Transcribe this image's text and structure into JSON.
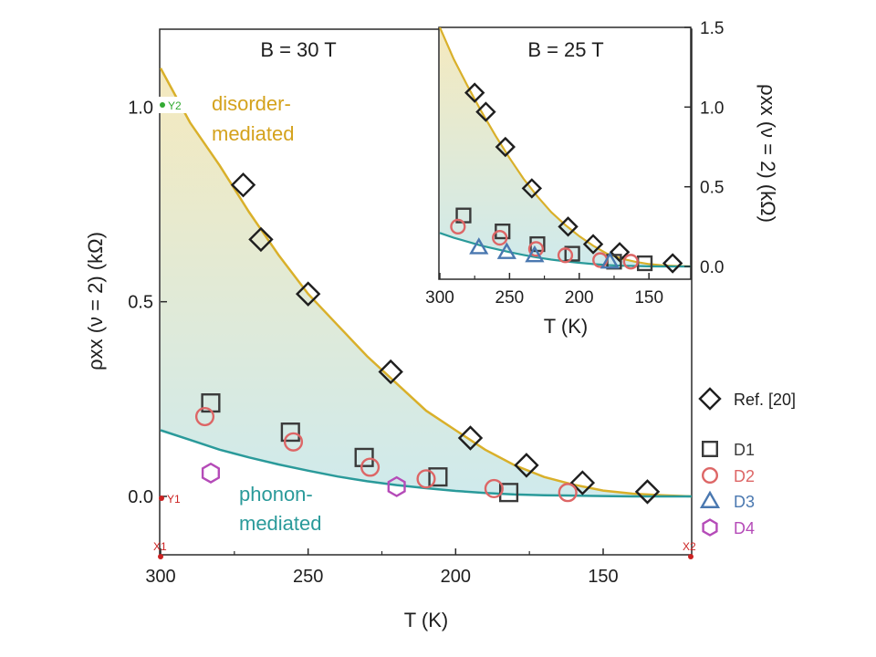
{
  "chart_data": [
    {
      "type": "scatter",
      "panel": "main",
      "title": "B = 30 T",
      "xlabel": "T (K)",
      "ylabel": "ρxx (ν = 2) (kΩ)",
      "xlim": [
        300,
        120
      ],
      "ylim": [
        -0.15,
        1.2
      ],
      "x_ticks": [
        300,
        250,
        200,
        150
      ],
      "y_ticks": [
        0.0,
        0.5,
        1.0
      ],
      "x_tick_labels": [
        "300",
        "250",
        "200",
        "150"
      ],
      "y_tick_labels": [
        "0.0",
        "0.5",
        "1.0"
      ],
      "annotations": {
        "upper": [
          "disorder-",
          "mediated"
        ],
        "lower": [
          "phonon-",
          "mediated"
        ]
      },
      "curves": [
        {
          "role": "disorder-mediated",
          "color": "#d9b02a",
          "x": [
            300,
            290,
            280,
            270,
            260,
            250,
            240,
            230,
            220,
            210,
            200,
            190,
            180,
            170,
            160,
            150,
            140,
            130,
            120
          ],
          "y": [
            1.1,
            0.96,
            0.85,
            0.73,
            0.62,
            0.52,
            0.44,
            0.36,
            0.29,
            0.22,
            0.17,
            0.12,
            0.08,
            0.05,
            0.03,
            0.015,
            0.007,
            0.003,
            0.0
          ]
        },
        {
          "role": "phonon-mediated",
          "color": "#2a9a9a",
          "x": [
            300,
            290,
            280,
            270,
            260,
            250,
            240,
            230,
            220,
            210,
            200,
            190,
            180,
            170,
            160,
            150,
            140,
            130,
            120
          ],
          "y": [
            0.17,
            0.145,
            0.12,
            0.1,
            0.082,
            0.066,
            0.051,
            0.039,
            0.029,
            0.021,
            0.014,
            0.009,
            0.005,
            0.003,
            0.002,
            0.001,
            0.0,
            0.0,
            0.0
          ]
        }
      ],
      "series": [
        {
          "name": "Ref. [20]",
          "marker": "diamond",
          "color": "#1e1e1e",
          "x": [
            272,
            266,
            250,
            222,
            195,
            176,
            157,
            135
          ],
          "y": [
            0.8,
            0.66,
            0.52,
            0.32,
            0.15,
            0.08,
            0.035,
            0.012
          ]
        },
        {
          "name": "D1",
          "marker": "square",
          "color": "#3a3a3a",
          "x": [
            283,
            256,
            231,
            206,
            182
          ],
          "y": [
            0.24,
            0.165,
            0.1,
            0.05,
            0.01
          ]
        },
        {
          "name": "D2",
          "marker": "circle",
          "color": "#dd6666",
          "x": [
            285,
            255,
            229,
            210,
            187,
            162
          ],
          "y": [
            0.205,
            0.14,
            0.075,
            0.045,
            0.02,
            0.01
          ]
        },
        {
          "name": "D3",
          "marker": "triangle",
          "color": "#4a78b0",
          "x": [],
          "y": []
        },
        {
          "name": "D4",
          "marker": "hexagon",
          "color": "#b54bb8",
          "x": [
            283,
            220
          ],
          "y": [
            0.06,
            0.025
          ]
        }
      ],
      "legend": {
        "placement": "right",
        "entries": [
          "Ref. [20]",
          "D1",
          "D2",
          "D3",
          "D4"
        ],
        "colors": [
          "#1e1e1e",
          "#3a3a3a",
          "#dd6666",
          "#4a78b0",
          "#b54bb8"
        ]
      },
      "reference_markers": [
        {
          "label": "X1",
          "color": "#cc2222"
        },
        {
          "label": "X2",
          "color": "#cc2222"
        },
        {
          "label": "Y1",
          "color": "#cc2222"
        },
        {
          "label": "Y2",
          "color": "#33aa33"
        }
      ]
    },
    {
      "type": "scatter",
      "panel": "inset",
      "title": "B = 25 T",
      "xlabel": "T (K)",
      "ylabel": "ρxx (ν = 2) (kΩ)",
      "xlim": [
        300,
        120
      ],
      "ylim": [
        -0.08,
        1.5
      ],
      "x_ticks": [
        300,
        250,
        200,
        150
      ],
      "y_ticks": [
        0.0,
        0.5,
        1.0,
        1.5
      ],
      "x_tick_labels": [
        "300",
        "250",
        "200",
        "150"
      ],
      "y_tick_labels": [
        "0.0",
        "0.5",
        "1.0",
        "1.5"
      ],
      "curves": [
        {
          "role": "disorder-mediated",
          "color": "#d9b02a",
          "x": [
            300,
            290,
            280,
            270,
            260,
            250,
            240,
            230,
            220,
            210,
            200,
            190,
            180,
            170,
            160,
            150,
            140,
            130,
            120
          ],
          "y": [
            1.5,
            1.3,
            1.13,
            0.97,
            0.82,
            0.68,
            0.55,
            0.44,
            0.34,
            0.26,
            0.19,
            0.13,
            0.08,
            0.05,
            0.03,
            0.015,
            0.007,
            0.003,
            0.0
          ]
        },
        {
          "role": "phonon-mediated",
          "color": "#2a9a9a",
          "x": [
            300,
            290,
            280,
            270,
            260,
            250,
            240,
            230,
            220,
            210,
            200,
            190,
            180,
            170,
            160,
            150,
            140,
            130,
            120
          ],
          "y": [
            0.21,
            0.18,
            0.155,
            0.13,
            0.11,
            0.09,
            0.072,
            0.056,
            0.043,
            0.032,
            0.023,
            0.015,
            0.009,
            0.005,
            0.003,
            0.001,
            0.0,
            0.0,
            0.0
          ]
        }
      ],
      "series": [
        {
          "name": "Ref. [20]",
          "marker": "diamond",
          "color": "#1e1e1e",
          "x": [
            275,
            267,
            253,
            234,
            208,
            190,
            171,
            133
          ],
          "y": [
            1.09,
            0.97,
            0.75,
            0.49,
            0.25,
            0.14,
            0.09,
            0.02
          ]
        },
        {
          "name": "D1",
          "marker": "square",
          "color": "#3a3a3a",
          "x": [
            283,
            255,
            230,
            205,
            175,
            153
          ],
          "y": [
            0.32,
            0.22,
            0.14,
            0.08,
            0.03,
            0.02
          ]
        },
        {
          "name": "D2",
          "marker": "circle",
          "color": "#dd6666",
          "x": [
            287,
            257,
            231,
            210,
            185,
            163
          ],
          "y": [
            0.25,
            0.18,
            0.11,
            0.07,
            0.04,
            0.03
          ]
        },
        {
          "name": "D3",
          "marker": "triangle",
          "color": "#4a78b0",
          "x": [
            272,
            252,
            232,
            178
          ],
          "y": [
            0.12,
            0.09,
            0.07,
            0.03
          ]
        },
        {
          "name": "D4",
          "marker": "hexagon",
          "color": "#b54bb8",
          "x": [],
          "y": []
        }
      ]
    }
  ]
}
